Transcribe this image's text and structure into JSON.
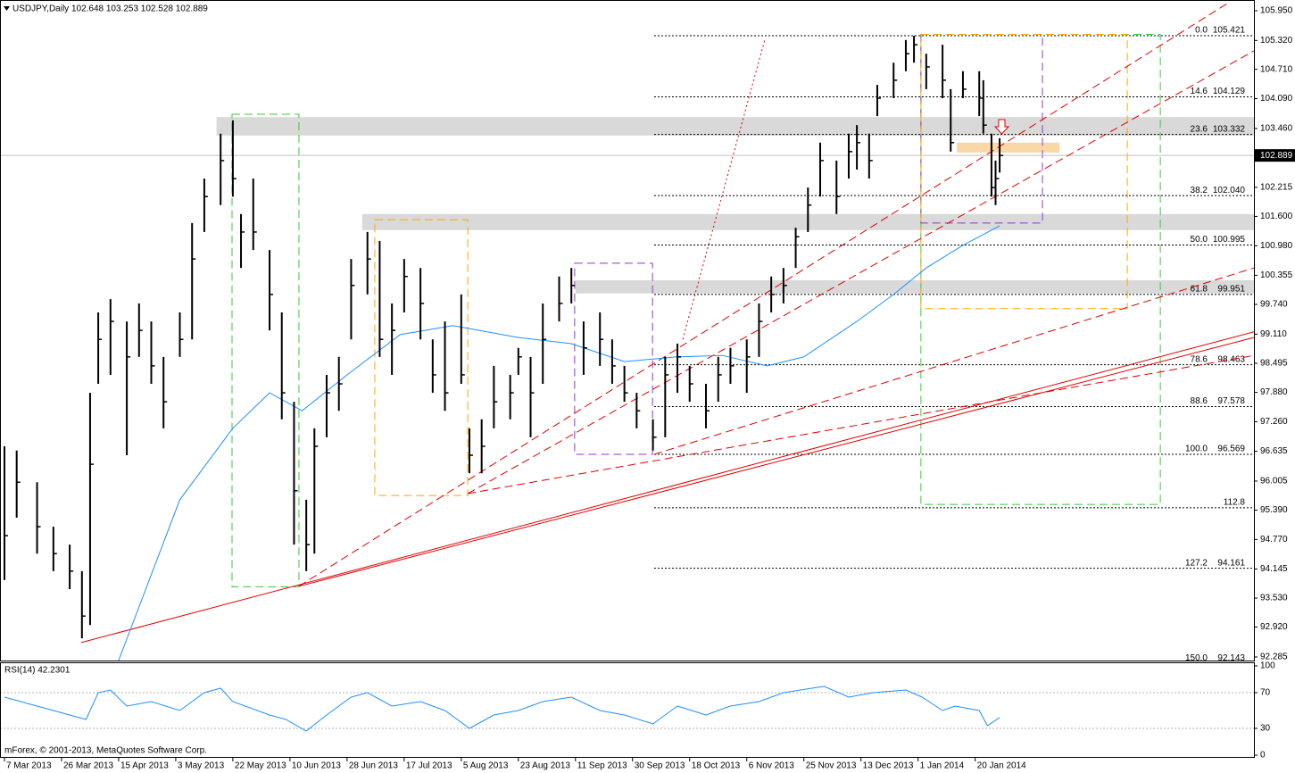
{
  "chart_data": [
    {
      "type": "ohlc",
      "title": "USDJPY,Daily  102.648 103.253 102.528 102.889",
      "footer": "mForex, © 2001-2013, MetaQuotes Software Corp.",
      "color": "#000000",
      "x": [
        0,
        3,
        8,
        12,
        16,
        19,
        21,
        23,
        26,
        30,
        33,
        36,
        39,
        43,
        46,
        49,
        53,
        56,
        58,
        61,
        65,
        68,
        71,
        74,
        76,
        79,
        82,
        85,
        89,
        92,
        95,
        98,
        102,
        105,
        108,
        112,
        114,
        117,
        120,
        124,
        126,
        129,
        132,
        136,
        139,
        142,
        146,
        149,
        152,
        155,
        159,
        162,
        165,
        168,
        172,
        175,
        178,
        182,
        185,
        188,
        191,
        194,
        197,
        200,
        204,
        207,
        209,
        212,
        214,
        218,
        221,
        223,
        226,
        230,
        232,
        235,
        239,
        240,
        242,
        243,
        244
      ],
      "high": [
        96.74,
        96.65,
        95.98,
        95.04,
        94.66,
        94.1,
        97.87,
        99.57,
        99.85,
        99.38,
        99.76,
        99.38,
        98.63,
        99.57,
        101.46,
        102.4,
        103.35,
        103.63,
        101.65,
        102.4,
        100.89,
        99.57,
        97.68,
        95.61,
        97.12,
        98.25,
        98.63,
        100.7,
        101.27,
        101.08,
        99.76,
        100.7,
        100.51,
        99.0,
        99.38,
        99.95,
        97.12,
        97.31,
        98.44,
        98.25,
        98.82,
        98.63,
        99.76,
        100.33,
        100.51,
        99.38,
        99.57,
        99.0,
        98.44,
        97.87,
        97.31,
        98.63,
        98.91,
        98.44,
        98.06,
        98.63,
        98.82,
        99.0,
        99.76,
        100.33,
        100.51,
        101.36,
        102.21,
        103.16,
        102.78,
        103.35,
        103.53,
        103.35,
        104.38,
        104.85,
        105.33,
        105.42,
        105.04,
        105.23,
        104.29,
        104.67,
        104.67,
        104.48,
        103.35,
        102.78,
        103.253
      ],
      "low": [
        93.91,
        95.23,
        94.47,
        94.1,
        93.72,
        92.68,
        92.96,
        98.06,
        98.25,
        96.55,
        98.63,
        98.06,
        97.12,
        98.63,
        99.0,
        101.27,
        101.84,
        102.02,
        100.51,
        100.89,
        99.19,
        97.31,
        94.66,
        94.1,
        94.47,
        96.93,
        97.49,
        99.0,
        99.95,
        98.63,
        98.25,
        99.57,
        99.0,
        97.87,
        97.49,
        98.06,
        96.17,
        96.17,
        97.12,
        97.31,
        98.25,
        96.93,
        98.06,
        99.38,
        99.76,
        98.25,
        98.44,
        98.06,
        97.68,
        97.12,
        96.65,
        96.93,
        97.87,
        97.68,
        97.12,
        97.68,
        98.06,
        97.87,
        98.63,
        99.57,
        99.76,
        100.51,
        101.27,
        102.02,
        101.65,
        102.4,
        102.59,
        102.4,
        103.72,
        104.1,
        104.67,
        104.85,
        104.29,
        104.1,
        102.97,
        104.1,
        103.72,
        103.35,
        102.02,
        101.84,
        102.528
      ],
      "close": [
        94.85,
        95.98,
        95.04,
        94.47,
        94.1,
        93.15,
        96.36,
        99.0,
        99.38,
        98.63,
        99.19,
        98.44,
        97.68,
        99.0,
        100.7,
        102.02,
        102.78,
        102.4,
        101.27,
        101.27,
        99.95,
        97.87,
        95.8,
        94.66,
        96.74,
        97.87,
        98.06,
        100.14,
        100.7,
        99.0,
        99.19,
        100.33,
        99.76,
        98.25,
        97.87,
        98.25,
        96.55,
        96.74,
        97.68,
        97.87,
        98.63,
        97.87,
        99.0,
        99.76,
        100.14,
        98.82,
        99.0,
        98.44,
        97.87,
        97.49,
        96.93,
        98.25,
        98.63,
        98.06,
        97.49,
        98.25,
        98.44,
        98.63,
        99.38,
        99.95,
        100.14,
        101.17,
        101.84,
        102.78,
        102.02,
        102.97,
        103.16,
        102.78,
        104.1,
        104.48,
        105.04,
        105.23,
        104.76,
        104.48,
        103.16,
        104.29,
        104.1,
        103.53,
        102.21,
        102.4,
        102.889
      ],
      "xlim": [
        -1.09,
        306.35
      ],
      "xticks": [
        {
          "value": 0,
          "label": "7 Mar 2013"
        },
        {
          "value": 14,
          "label": "26 Mar 2013"
        },
        {
          "value": 28,
          "label": "15 Apr 2013"
        },
        {
          "value": 42,
          "label": "3 May 2013"
        },
        {
          "value": 56,
          "label": "22 May 2013"
        },
        {
          "value": 70,
          "label": "10 Jun 2013"
        },
        {
          "value": 84,
          "label": "28 Jun 2013"
        },
        {
          "value": 98,
          "label": "17 Jul 2013"
        },
        {
          "value": 112,
          "label": "5 Aug 2013"
        },
        {
          "value": 126,
          "label": "23 Aug 2013"
        },
        {
          "value": 140,
          "label": "11 Sep 2013"
        },
        {
          "value": 154,
          "label": "30 Sep 2013"
        },
        {
          "value": 168,
          "label": "18 Oct 2013"
        },
        {
          "value": 182,
          "label": "6 Nov 2013"
        },
        {
          "value": 196,
          "label": "25 Nov 2013"
        },
        {
          "value": 210,
          "label": "13 Dec 2013"
        },
        {
          "value": 224,
          "label": "1 Jan 2014"
        },
        {
          "value": 238,
          "label": "20 Jan 2014"
        }
      ],
      "ylim": [
        92.21,
        106.1
      ],
      "yticks": [
        {
          "value": 105.95,
          "label": "105.950"
        },
        {
          "value": 105.32,
          "label": "105.320"
        },
        {
          "value": 104.71,
          "label": "104.710"
        },
        {
          "value": 104.09,
          "label": "104.090"
        },
        {
          "value": 103.46,
          "label": "103.460"
        },
        102.215,
        {
          "value": 101.6,
          "label": "101.600"
        },
        {
          "value": 100.98,
          "label": "100.980"
        },
        100.355,
        {
          "value": 99.74,
          "label": "99.740"
        },
        {
          "value": 99.11,
          "label": "99.110"
        },
        98.495,
        {
          "value": 97.88,
          "label": "97.880"
        },
        {
          "value": 97.26,
          "label": "97.260"
        },
        96.635,
        96.005,
        {
          "value": 95.39,
          "label": "95.390"
        },
        {
          "value": 94.77,
          "label": "94.770"
        },
        94.145,
        {
          "value": 93.53,
          "label": "93.530"
        },
        {
          "value": 92.92,
          "label": "92.920"
        },
        92.285
      ],
      "last_price": 102.889,
      "moving_average": {
        "color": "#1e90ff",
        "x": [
          28,
          43,
          56,
          65,
          73,
          84,
          97,
          110,
          126,
          139,
          152,
          165,
          176,
          187,
          196,
          209,
          218,
          226,
          235,
          244
        ],
        "values": [
          92.21,
          95.61,
          97.12,
          97.87,
          97.49,
          98.25,
          99.1,
          99.29,
          99.04,
          98.91,
          98.53,
          98.63,
          98.66,
          98.44,
          98.63,
          99.38,
          99.95,
          100.51,
          100.99,
          101.4
        ]
      },
      "fib_anchor_x": 159.3,
      "fib_levels": [
        {
          "ratio": "0.0",
          "price": 105.421
        },
        {
          "ratio": "14.6",
          "price": 104.129
        },
        {
          "ratio": "23.6",
          "price": 103.332
        },
        {
          "ratio": "38.2",
          "price": {
            "value": 102.04,
            "label": "102.040"
          }
        },
        {
          "ratio": "50.0",
          "price": 100.995
        },
        {
          "ratio": "61.8",
          "price": 99.951
        },
        {
          "ratio": "78.6",
          "price": 98.463
        },
        {
          "ratio": "88.6",
          "price": 97.578
        },
        {
          "ratio": "100.0",
          "price": 96.569
        },
        {
          "ratio": "112.8",
          "value": 95.44
        },
        {
          "ratio": "127.2",
          "price": 94.161
        },
        {
          "ratio": "150.0",
          "price": 92.143
        }
      ],
      "zones": [
        {
          "x": [
            52,
            306.35
          ],
          "y": [
            103.31,
            103.7
          ],
          "color": "#d9d9d9"
        },
        {
          "x": [
            87.7,
            306.35
          ],
          "y": [
            101.31,
            101.65
          ],
          "color": "#d9d9d9"
        },
        {
          "x": [
            140,
            306.35
          ],
          "y": [
            99.97,
            100.25
          ],
          "color": "#d9d9d9"
        },
        {
          "x": [
            233.5,
            258.7
          ],
          "y": [
            102.95,
            103.16
          ],
          "color": "#fad7a6"
        }
      ],
      "boxes": [
        {
          "x": [
            55.8,
            72.2
          ],
          "y": [
            93.77,
            103.76
          ],
          "color": "#32cd32"
        },
        {
          "x": [
            90.8,
            113.6
          ],
          "y": [
            95.7,
            101.53
          ],
          "color": "#ffa500"
        },
        {
          "x": [
            139.8,
            158.9
          ],
          "y": [
            96.57,
            100.61
          ],
          "color": "#9932cc"
        },
        {
          "x": [
            224.7,
            283.4
          ],
          "y": [
            95.51,
            105.45
          ],
          "color": "#32cd32"
        },
        {
          "x": [
            224.7,
            254.5
          ],
          "y": [
            101.46,
            105.45
          ],
          "color": "#9932cc"
        },
        {
          "x": [
            224.7,
            275.3
          ],
          "y": [
            99.65,
            105.45
          ],
          "color": "#ffa500"
        }
      ],
      "trend_lines": [
        {
          "x": [
            18.8,
            306.35
          ],
          "y": [
            92.59,
            99.16
          ],
          "style": "solid"
        },
        {
          "x": [
            72.2,
            306.35
          ],
          "y": [
            93.78,
            99.04
          ],
          "style": "solid"
        },
        {
          "x": [
            72.2,
            299.8
          ],
          "y": [
            93.78,
            106.1
          ],
          "style": "dashed"
        },
        {
          "x": [
            113.6,
            306.35
          ],
          "y": [
            95.74,
            105.1
          ],
          "style": "dashed"
        },
        {
          "x": [
            159.3,
            306.35
          ],
          "y": [
            96.57,
            100.51
          ],
          "style": "dashed"
        },
        {
          "x": [
            113.6,
            306.35
          ],
          "y": [
            95.74,
            98.66
          ],
          "style": "dashed"
        },
        {
          "x": [
            166.3,
            186.4
          ],
          "y": [
            99.0,
            105.33
          ],
          "style": "dotted"
        }
      ],
      "trend_color": "#e00000"
    },
    {
      "type": "line",
      "title": "RSI(14) 42.2301",
      "color": "#1e90ff",
      "x": [
        0,
        8,
        16,
        20,
        23,
        26,
        30,
        36,
        43,
        49,
        53,
        56,
        65,
        69,
        74,
        79,
        85,
        89,
        95,
        102,
        108,
        114,
        120,
        126,
        132,
        139,
        146,
        152,
        159,
        165,
        172,
        178,
        185,
        191,
        198,
        201,
        207,
        213,
        221,
        225,
        230,
        233,
        239,
        241,
        244
      ],
      "values": [
        65,
        55,
        45,
        40,
        70,
        73,
        55,
        60,
        50,
        70,
        75,
        60,
        45,
        40,
        27,
        45,
        65,
        70,
        55,
        60,
        50,
        30,
        45,
        50,
        60,
        65,
        50,
        45,
        35,
        55,
        45,
        55,
        60,
        70,
        75,
        77,
        65,
        70,
        73,
        65,
        50,
        55,
        50,
        33,
        42.2301
      ],
      "xlim": [
        -1.09,
        306.35
      ],
      "ylim": [
        -2,
        103
      ],
      "yticks": [
        100,
        70,
        30,
        0
      ],
      "levels": [
        70,
        30
      ]
    }
  ]
}
